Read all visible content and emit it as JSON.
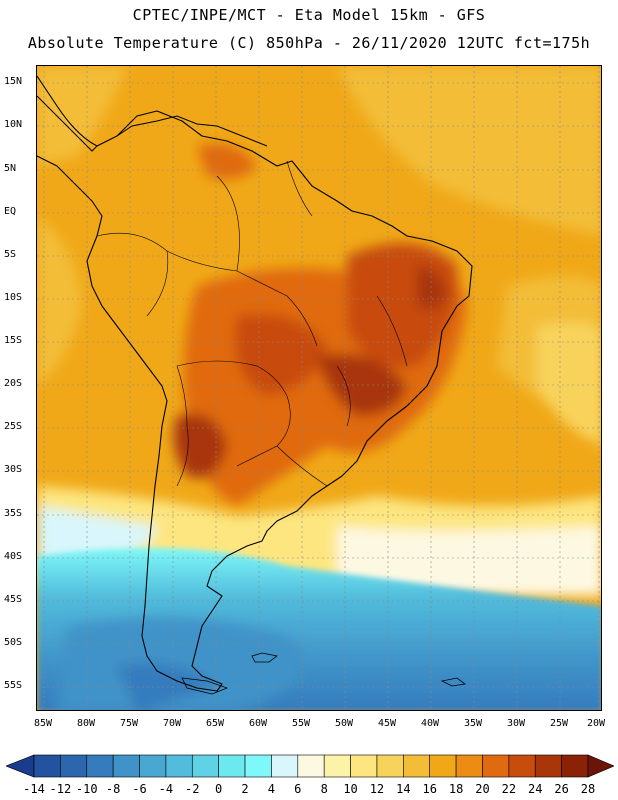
{
  "title_line1": "CPTEC/INPE/MCT -  Eta Model 15km - GFS",
  "title_line2": "Absolute Temperature (C) 850hPa - 26/11/2020 12UTC fct=175h",
  "lat_labels": [
    "15N",
    "10N",
    "5N",
    "EQ",
    "5S",
    "10S",
    "15S",
    "20S",
    "25S",
    "30S",
    "35S",
    "40S",
    "45S",
    "50S",
    "55S"
  ],
  "lon_labels": [
    "85W",
    "80W",
    "75W",
    "70W",
    "65W",
    "60W",
    "55W",
    "50W",
    "45W",
    "40W",
    "35W",
    "30W",
    "25W",
    "20W"
  ],
  "colorbar": {
    "labels": [
      "-14",
      "-12",
      "-10",
      "-8",
      "-6",
      "-4",
      "-2",
      "0",
      "2",
      "4",
      "6",
      "8",
      "10",
      "12",
      "14",
      "16",
      "18",
      "20",
      "22",
      "24",
      "26",
      "28"
    ],
    "colors": [
      "#1a3c8c",
      "#23529e",
      "#2c66ae",
      "#357bbe",
      "#3f93c8",
      "#49a8d2",
      "#52bcdc",
      "#5fd2e6",
      "#6ce8ef",
      "#7ef8f8",
      "#d8f6fb",
      "#fdf8e2",
      "#fdf3a8",
      "#fde680",
      "#f8d35c",
      "#f3bd38",
      "#f0a818",
      "#ec8c14",
      "#e06a10",
      "#c84c0c",
      "#a8360a",
      "#8a2208",
      "#6a1508"
    ]
  }
}
